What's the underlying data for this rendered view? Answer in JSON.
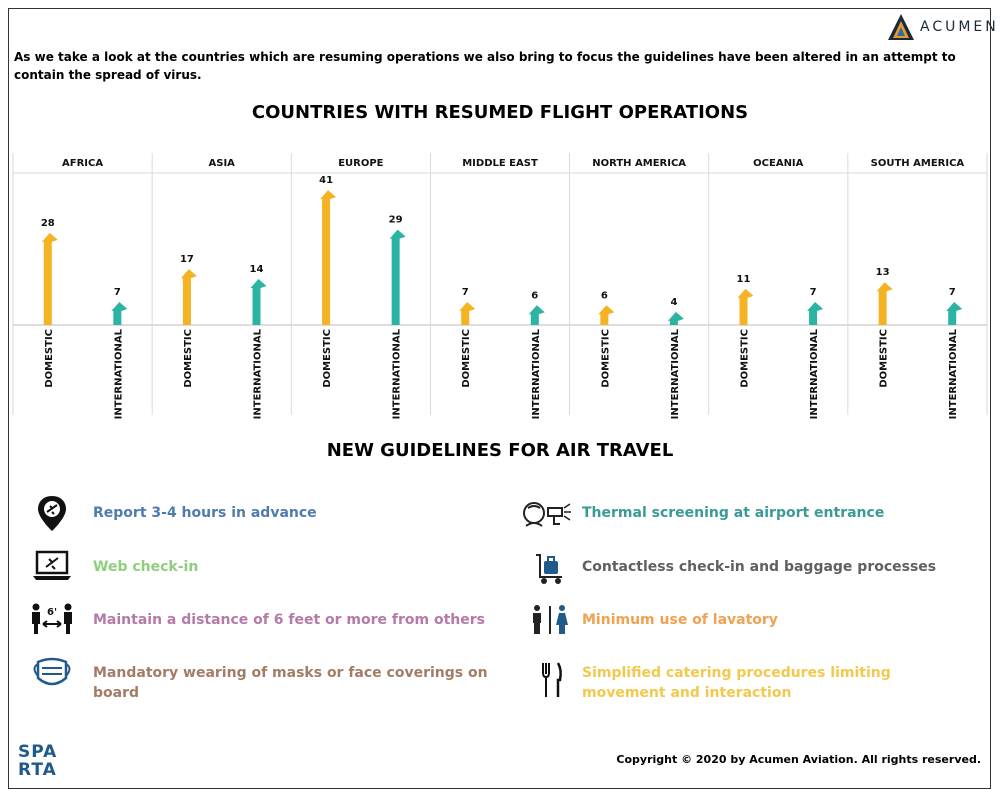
{
  "header": {
    "logo_text": "ACUMEN",
    "intro": "As we take a look at the countries which are resuming operations we also bring to focus the guidelines have been altered in an attempt to contain the spread of virus."
  },
  "colors": {
    "domestic": "#f5b324",
    "international": "#2bb3a3",
    "grid": "#d9d9d9"
  },
  "chart_data": {
    "type": "bar",
    "title": "COUNTRIES WITH RESUMED FLIGHT OPERATIONS",
    "categories": [
      "AFRICA",
      "ASIA",
      "EUROPE",
      "MIDDLE EAST",
      "NORTH AMERICA",
      "OCEANIA",
      "SOUTH AMERICA"
    ],
    "sub_categories": [
      "DOMESTIC",
      "INTERNATIONAL"
    ],
    "series": [
      {
        "name": "DOMESTIC",
        "values": [
          28,
          17,
          41,
          7,
          6,
          11,
          13
        ]
      },
      {
        "name": "INTERNATIONAL",
        "values": [
          7,
          14,
          29,
          6,
          4,
          7,
          7
        ]
      }
    ],
    "ylim": [
      0,
      45
    ],
    "grid": true,
    "mark": "arrow"
  },
  "guidelines": {
    "title": "NEW GUIDELINES FOR AIR TRAVEL",
    "items": [
      {
        "text": "Report  3-4 hours in advance",
        "icon": "location-pin-plane-icon",
        "color": "#4f7bb0"
      },
      {
        "text": "Thermal screening at airport entrance",
        "icon": "thermal-scanner-icon",
        "color": "#3a9a95"
      },
      {
        "text": "Web check-in",
        "icon": "laptop-plane-icon",
        "color": "#8fce7e"
      },
      {
        "text": "Contactless check-in and baggage processes",
        "icon": "baggage-trolley-icon",
        "color": "#606060"
      },
      {
        "text": "Maintain a distance of 6 feet or more from others",
        "icon": "social-distance-icon",
        "color": "#b57aa8",
        "icon_label": "6'"
      },
      {
        "text": "Minimum use of lavatory",
        "icon": "lavatory-icon",
        "color": "#f1a250"
      },
      {
        "text": "Mandatory wearing of masks or face coverings on board",
        "icon": "face-mask-icon",
        "color": "#a37c66"
      },
      {
        "text": "Simplified catering procedures limiting movement and interaction",
        "icon": "fork-knife-icon",
        "color": "#f2c94c"
      }
    ]
  },
  "footer": {
    "sparta_line1": "SPA",
    "sparta_line2": "RTA",
    "copyright": "Copyright © 2020 by Acumen Aviation. All rights reserved."
  }
}
